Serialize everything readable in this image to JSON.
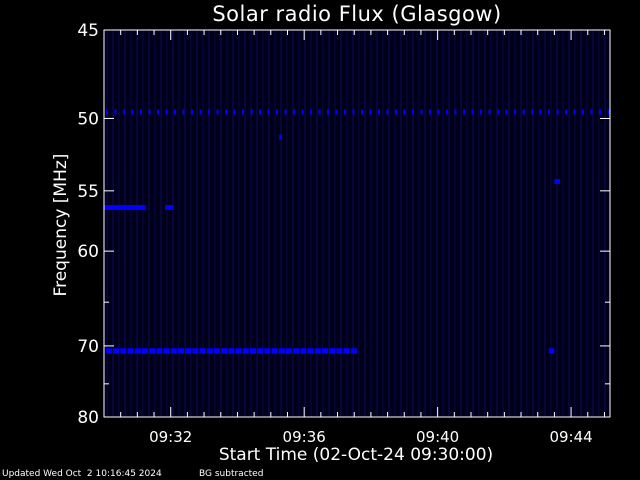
{
  "chart_data": {
    "type": "heatmap",
    "title": "Solar radio Flux (Glasgow)",
    "ylabel": "Frequency [MHz]",
    "xlabel": "Start Time (02-Oct-24 09:30:00)",
    "y_scale": "reciprocal (frequency decreases downward, 45 at top, 80 at bottom)",
    "ylim": [
      45,
      80
    ],
    "y_ticks": [
      45,
      50,
      55,
      60,
      70,
      80
    ],
    "xlim": [
      "09:30:00",
      "09:45:10"
    ],
    "x_ticks": [
      "09:32",
      "09:36",
      "09:40",
      "09:44"
    ],
    "background_color": "#00001a",
    "signal_color": "#0000ff",
    "emissions": [
      {
        "freq_mhz": 49.6,
        "start": "09:30:00",
        "end": "09:45:10",
        "pattern": "dashed"
      },
      {
        "freq_mhz": 51.2,
        "start": "09:35:15",
        "end": "09:35:20",
        "pattern": "solid"
      },
      {
        "freq_mhz": 56.3,
        "start": "09:30:00",
        "end": "09:31:15",
        "pattern": "solid"
      },
      {
        "freq_mhz": 56.3,
        "start": "09:31:50",
        "end": "09:32:05",
        "pattern": "solid"
      },
      {
        "freq_mhz": 54.3,
        "start": "09:43:30",
        "end": "09:43:40",
        "pattern": "solid"
      },
      {
        "freq_mhz": 70.6,
        "start": "09:30:00",
        "end": "09:37:30",
        "pattern": "dashed"
      },
      {
        "freq_mhz": 70.6,
        "start": "09:43:20",
        "end": "09:43:30",
        "pattern": "solid"
      }
    ]
  },
  "footer": {
    "updated": "Updated Wed Oct  2 10:16:45 2024",
    "bg": "BG subtracted"
  }
}
